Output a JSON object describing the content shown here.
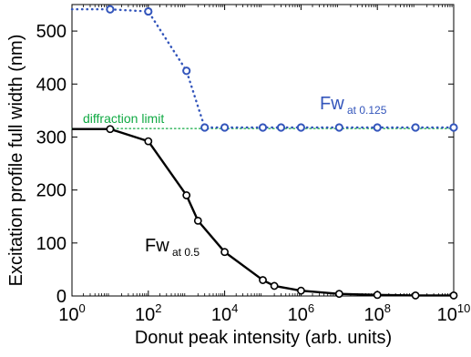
{
  "chart_data": {
    "type": "line",
    "xlabel": "Donut peak intensity (arb. units)",
    "ylabel": "Excitation profile full width (nm)",
    "x_scale": "log",
    "xlim": [
      1,
      10000000000
    ],
    "ylim": [
      0,
      550
    ],
    "x_ticks": [
      {
        "base": "10",
        "exp": "0",
        "value": 1
      },
      {
        "base": "10",
        "exp": "2",
        "value": 100
      },
      {
        "base": "10",
        "exp": "4",
        "value": 10000
      },
      {
        "base": "10",
        "exp": "6",
        "value": 1000000
      },
      {
        "base": "10",
        "exp": "8",
        "value": 100000000
      },
      {
        "base": "10",
        "exp": "10",
        "value": 10000000000
      }
    ],
    "y_ticks": [
      "0",
      "100",
      "200",
      "300",
      "400",
      "500"
    ],
    "grid": false,
    "series": [
      {
        "label_main": "Fw",
        "label_sub": "at 0.125",
        "color": "#3355bb",
        "line_style": "dotted",
        "marker": "circle",
        "x": [
          10,
          100,
          1000,
          3000,
          10000,
          100000,
          300000,
          1000000,
          10000000,
          100000000,
          1000000000,
          10000000000
        ],
        "y": [
          541,
          537,
          425,
          318,
          318,
          318,
          318,
          318,
          318,
          318,
          318,
          318
        ]
      },
      {
        "label_main": "Fw",
        "label_sub": "at 0.5",
        "color": "#000000",
        "line_style": "solid",
        "marker": "circle",
        "x": [
          10,
          100,
          1000,
          2000,
          10000,
          100000,
          200000,
          1000000,
          10000000,
          100000000,
          1000000000,
          10000000000
        ],
        "y": [
          315,
          292,
          190,
          142,
          83,
          30,
          19,
          10,
          4,
          2,
          1,
          1
        ]
      }
    ],
    "annotations": [
      {
        "text": "diffraction limit",
        "color": "#11aa44",
        "y": 316
      }
    ]
  }
}
